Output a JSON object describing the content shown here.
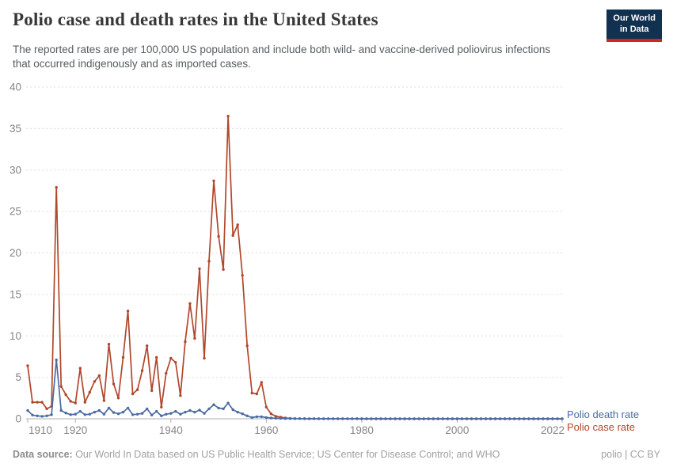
{
  "header": {
    "title": "Polio case and death rates in the United States",
    "subtitle": "The reported rates are per 100,000 US population and include both wild- and vaccine-derived poliovirus infections that occurred indigenously and as imported cases.",
    "logo": {
      "line1": "Our World",
      "line2": "in Data",
      "bg_color": "#12304f",
      "accent_color": "#d0281e"
    }
  },
  "footer": {
    "source_label": "Data source:",
    "source_text": " Our World In Data based on US Public Health Service; US Center for Disease Control; and WHO",
    "right_text": "polio | CC BY"
  },
  "chart_data": {
    "type": "line",
    "title": "Polio case and death rates in the United States",
    "xlabel": "",
    "ylabel": "",
    "xlim": [
      1910,
      2022
    ],
    "ylim": [
      0,
      40
    ],
    "x_ticks": [
      1910,
      1920,
      1940,
      1960,
      1980,
      2000,
      2022
    ],
    "y_ticks": [
      0,
      5,
      10,
      15,
      20,
      25,
      30,
      35,
      40
    ],
    "grid": "horizontal-dashed",
    "grid_color": "#dcdcdc",
    "axis_color": "#b0b0b0",
    "tick_text_color": "#858585",
    "legend_position": "end-of-line-labels",
    "years": [
      1910,
      1911,
      1912,
      1913,
      1914,
      1915,
      1916,
      1917,
      1918,
      1919,
      1920,
      1921,
      1922,
      1923,
      1924,
      1925,
      1926,
      1927,
      1928,
      1929,
      1930,
      1931,
      1932,
      1933,
      1934,
      1935,
      1936,
      1937,
      1938,
      1939,
      1940,
      1941,
      1942,
      1943,
      1944,
      1945,
      1946,
      1947,
      1948,
      1949,
      1950,
      1951,
      1952,
      1953,
      1954,
      1955,
      1956,
      1957,
      1958,
      1959,
      1960,
      1961,
      1962,
      1963,
      1964,
      1965,
      1966,
      1967,
      1968,
      1969,
      1970,
      1971,
      1972,
      1973,
      1974,
      1975,
      1976,
      1977,
      1978,
      1979,
      1980,
      1981,
      1982,
      1983,
      1984,
      1985,
      1986,
      1987,
      1988,
      1989,
      1990,
      1991,
      1992,
      1993,
      1994,
      1995,
      1996,
      1997,
      1998,
      1999,
      2000,
      2001,
      2002,
      2003,
      2004,
      2005,
      2006,
      2007,
      2008,
      2009,
      2010,
      2011,
      2012,
      2013,
      2014,
      2015,
      2016,
      2017,
      2018,
      2019,
      2020,
      2021,
      2022
    ],
    "series": [
      {
        "name": "Polio case rate",
        "color": "#b1472b",
        "values": [
          6.4,
          2.0,
          2.0,
          2.0,
          1.2,
          1.5,
          27.9,
          3.9,
          2.9,
          2.1,
          1.9,
          6.1,
          2.0,
          3.2,
          4.5,
          5.2,
          2.2,
          9.0,
          4.2,
          2.5,
          7.4,
          13.0,
          3.0,
          3.5,
          5.8,
          8.8,
          3.4,
          7.4,
          1.4,
          5.5,
          7.3,
          6.8,
          2.8,
          9.3,
          13.9,
          9.7,
          18.1,
          7.3,
          19.0,
          28.7,
          22.0,
          18.0,
          36.5,
          22.1,
          23.4,
          17.3,
          8.8,
          3.1,
          3.0,
          4.4,
          1.4,
          0.6,
          0.3,
          0.2,
          0.1,
          0.05,
          0.03,
          0.02,
          0.02,
          0.01,
          0.02,
          0.01,
          0.01,
          0.01,
          0.01,
          0.01,
          0.01,
          0.01,
          0.01,
          0.02,
          0,
          0,
          0,
          0,
          0,
          0,
          0,
          0,
          0,
          0,
          0,
          0,
          0,
          0,
          0,
          0,
          0,
          0,
          0,
          0,
          0,
          0,
          0,
          0,
          0,
          0,
          0,
          0,
          0,
          0,
          0,
          0,
          0,
          0,
          0,
          0,
          0,
          0,
          0,
          0,
          0,
          0,
          0
        ]
      },
      {
        "name": "Polio death rate",
        "color": "#4c6ba3",
        "values": [
          1.0,
          0.45,
          0.35,
          0.3,
          0.35,
          0.5,
          7.1,
          1.0,
          0.7,
          0.5,
          0.55,
          0.9,
          0.5,
          0.55,
          0.8,
          1.0,
          0.55,
          1.3,
          0.75,
          0.6,
          0.8,
          1.3,
          0.5,
          0.55,
          0.65,
          1.2,
          0.45,
          0.9,
          0.35,
          0.55,
          0.65,
          0.9,
          0.55,
          0.8,
          1.0,
          0.8,
          1.05,
          0.65,
          1.2,
          1.7,
          1.3,
          1.2,
          1.9,
          1.1,
          0.8,
          0.6,
          0.35,
          0.15,
          0.25,
          0.25,
          0.15,
          0.1,
          0.07,
          0.05,
          0.03,
          0.02,
          0.02,
          0.02,
          0.01,
          0.01,
          0.01,
          0.01,
          0.01,
          0.01,
          0.01,
          0.01,
          0.01,
          0.01,
          0.01,
          0.01,
          0,
          0,
          0,
          0,
          0,
          0,
          0,
          0,
          0,
          0,
          0,
          0,
          0,
          0,
          0,
          0,
          0,
          0,
          0,
          0,
          0,
          0,
          0,
          0,
          0,
          0,
          0,
          0,
          0,
          0,
          0,
          0,
          0,
          0,
          0,
          0,
          0,
          0,
          0,
          0,
          0,
          0,
          0
        ]
      }
    ]
  }
}
